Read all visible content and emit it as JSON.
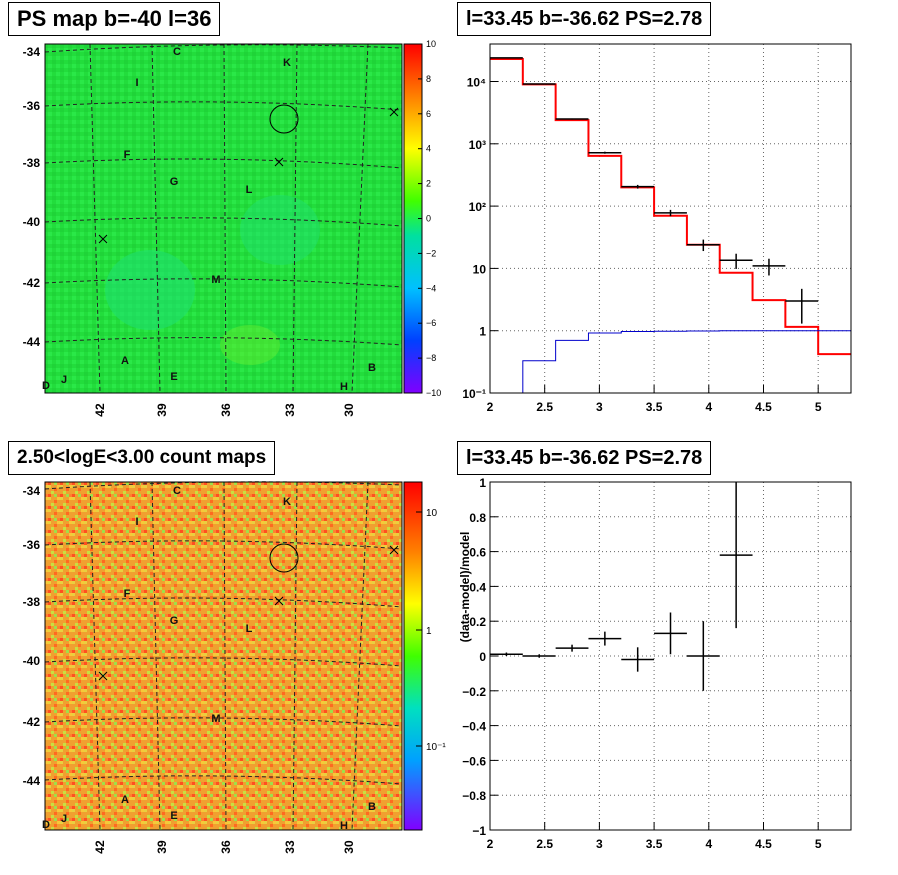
{
  "panels": {
    "ps_map": {
      "title": "PS map b=-40 l=36",
      "y_ticks": [
        "-34",
        "-36",
        "-38",
        "-40",
        "-42",
        "-44"
      ],
      "x_ticks": [
        "42",
        "39",
        "36",
        "33",
        "30"
      ],
      "colorbar_ticks": [
        "10",
        "8",
        "6",
        "4",
        "2",
        "0",
        "−2",
        "−4",
        "−6",
        "−8",
        "−10"
      ],
      "labels": [
        "C",
        "K",
        "I",
        "F",
        "G",
        "L",
        "M",
        "A",
        "E",
        "B",
        "D",
        "J",
        "H"
      ]
    },
    "count_map": {
      "title": "2.50<logE<3.00 count maps",
      "y_ticks": [
        "-34",
        "-36",
        "-38",
        "-40",
        "-42",
        "-44"
      ],
      "x_ticks": [
        "42",
        "39",
        "36",
        "33",
        "30"
      ],
      "colorbar_ticks": [
        "10",
        "1",
        "10⁻¹"
      ],
      "labels": [
        "C",
        "K",
        "I",
        "F",
        "G",
        "L",
        "M",
        "A",
        "E",
        "B",
        "D",
        "J",
        "H"
      ]
    },
    "spectrum": {
      "title": "l=33.45 b=-36.62 PS=2.78"
    },
    "residual": {
      "title": "l=33.45 b=-36.62 PS=2.78"
    }
  },
  "chart_data": [
    {
      "type": "heatmap",
      "title": "PS map b=-40 l=36",
      "y_ticks": [
        -34,
        -36,
        -38,
        -40,
        -42,
        -44
      ],
      "x_ticks": [
        42,
        39,
        36,
        33,
        30
      ],
      "zlim": [
        -10,
        10
      ],
      "colors": {
        "background": "#22e040"
      }
    },
    {
      "type": "heatmap",
      "title": "2.50<logE<3.00 count maps",
      "y_ticks": [
        -34,
        -36,
        -38,
        -40,
        -42,
        -44
      ],
      "x_ticks": [
        42,
        39,
        36,
        33,
        30
      ],
      "z_scale": "log",
      "colors": {
        "background": "#f0a030"
      }
    },
    {
      "type": "line",
      "title": "l=33.45 b=-36.62 PS=2.78",
      "x_ticks": [
        "2",
        "2.5",
        "3",
        "3.5",
        "4",
        "4.5",
        "5"
      ],
      "y_ticks": [
        "10⁻¹",
        "1",
        "10",
        "10²",
        "10³",
        "10⁴"
      ],
      "xlim": [
        2,
        5.3
      ],
      "ylim": [
        0.1,
        40000
      ],
      "y_scale": "log",
      "grid": true,
      "bin_edges": [
        2.0,
        2.3,
        2.6,
        2.9,
        3.2,
        3.5,
        3.8,
        4.1,
        4.4,
        4.7,
        5.0,
        5.3
      ],
      "series": [
        {
          "color": "#ff0000",
          "values": [
            23000,
            9000,
            2400,
            640,
            200,
            70,
            24,
            8.5,
            3.1,
            1.15,
            0.42
          ]
        },
        {
          "color": "#0000cc",
          "values": [
            0.1,
            0.33,
            0.7,
            0.92,
            0.97,
            0.98,
            0.99,
            1.0,
            1.0,
            1.0,
            1.0
          ]
        }
      ],
      "points": [
        {
          "x": 2.15,
          "y": 24000,
          "xerr": 0.15,
          "yerr": 150
        },
        {
          "x": 2.45,
          "y": 9100,
          "xerr": 0.15,
          "yerr": 100
        },
        {
          "x": 2.75,
          "y": 2500,
          "xerr": 0.15,
          "yerr": 50
        },
        {
          "x": 3.05,
          "y": 720,
          "xerr": 0.15,
          "yerr": 27
        },
        {
          "x": 3.35,
          "y": 205,
          "xerr": 0.15,
          "yerr": 14
        },
        {
          "x": 3.65,
          "y": 78,
          "xerr": 0.15,
          "yerr": 9
        },
        {
          "x": 3.95,
          "y": 24,
          "xerr": 0.15,
          "yerr": 5
        },
        {
          "x": 4.25,
          "y": 13.5,
          "xerr": 0.15,
          "yerr": 3.7
        },
        {
          "x": 4.55,
          "y": 11,
          "xerr": 0.15,
          "yerr": 3.3
        },
        {
          "x": 4.85,
          "y": 3,
          "xerr": 0.15,
          "yerr": 1.7
        }
      ]
    },
    {
      "type": "scatter",
      "title": "l=33.45 b=-36.62 PS=2.78",
      "ylabel": "(data-model)/model",
      "x_ticks": [
        "2",
        "2.5",
        "3",
        "3.5",
        "4",
        "4.5",
        "5"
      ],
      "y_ticks": [
        "1",
        "0.8",
        "0.6",
        "0.4",
        "0.2",
        "0",
        "−0.2",
        "−0.4",
        "−0.6",
        "−0.8",
        "−1"
      ],
      "xlim": [
        2,
        5.3
      ],
      "ylim": [
        -1,
        1
      ],
      "grid": true,
      "points": [
        {
          "x": 2.15,
          "y": 0.01,
          "xerr": 0.15,
          "yerr": 0.01
        },
        {
          "x": 2.45,
          "y": 0.0,
          "xerr": 0.15,
          "yerr": 0.01
        },
        {
          "x": 2.75,
          "y": 0.045,
          "xerr": 0.15,
          "yerr": 0.02
        },
        {
          "x": 3.05,
          "y": 0.1,
          "xerr": 0.15,
          "yerr": 0.04
        },
        {
          "x": 3.35,
          "y": -0.02,
          "xerr": 0.15,
          "yerr": 0.07
        },
        {
          "x": 3.65,
          "y": 0.13,
          "xerr": 0.15,
          "yerr": 0.12
        },
        {
          "x": 3.95,
          "y": 0.0,
          "xerr": 0.15,
          "yerr": 0.2
        },
        {
          "x": 4.25,
          "y": 0.58,
          "xerr": 0.15,
          "yerr": 0.42
        }
      ]
    }
  ]
}
